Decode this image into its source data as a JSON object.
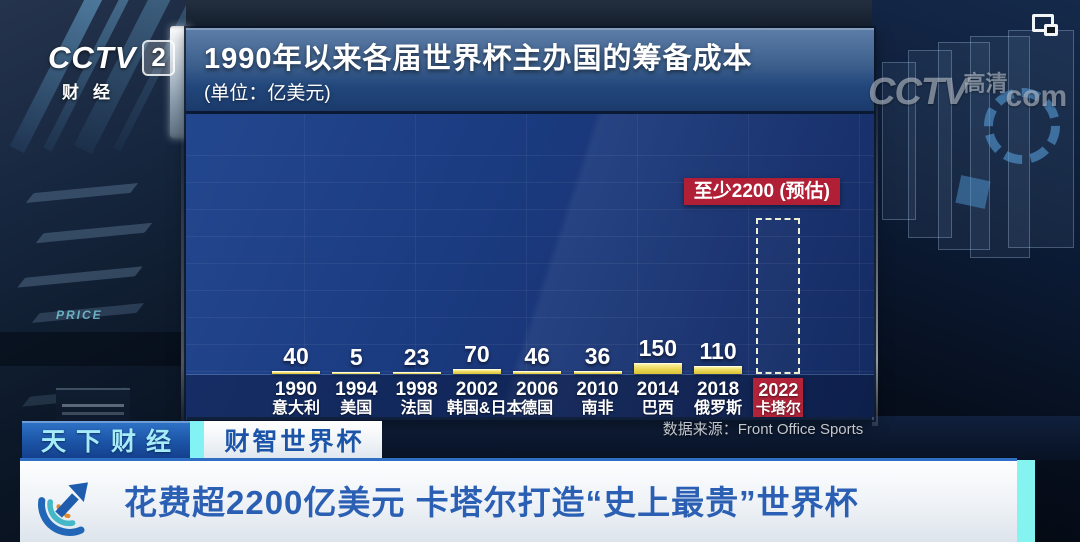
{
  "overlay": {
    "channel_logo": {
      "name": "CCTV",
      "channel": "2",
      "sub": "财经"
    },
    "site_watermark": {
      "cctv": "CCTV",
      "hd": "高清",
      "com": "com"
    }
  },
  "chart_data": {
    "type": "bar",
    "title": "1990年以来各届世界杯主办国的筹备成本",
    "unit_label": "(单位：亿美元)",
    "source_label": "数据来源：Front Office Sports",
    "annotation_label": "至少2200 (预估)",
    "ylim": [
      0,
      2200
    ],
    "bar_color": "#e6d44c",
    "highlight_color": "#b22339",
    "grid": true,
    "bars": [
      {
        "year": "1990",
        "country": "意大利",
        "value": 40
      },
      {
        "year": "1994",
        "country": "美国",
        "value": 5
      },
      {
        "year": "1998",
        "country": "法国",
        "value": 23
      },
      {
        "year": "2002",
        "country": "韩国&日本",
        "value": 70
      },
      {
        "year": "2006",
        "country": "德国",
        "value": 46
      },
      {
        "year": "2010",
        "country": "南非",
        "value": 36
      },
      {
        "year": "2014",
        "country": "巴西",
        "value": 150
      },
      {
        "year": "2018",
        "country": "俄罗斯",
        "value": 110
      },
      {
        "year": "2022",
        "country": "卡塔尔",
        "value": 2200,
        "estimated": true
      }
    ]
  },
  "ticker": {
    "tab_primary": "天下财经",
    "tab_secondary": "财智世界杯",
    "headline": "花费超2200亿美元 卡塔尔打造“史上最贵”世界杯"
  },
  "studio": {
    "price_label": "PRICE"
  }
}
